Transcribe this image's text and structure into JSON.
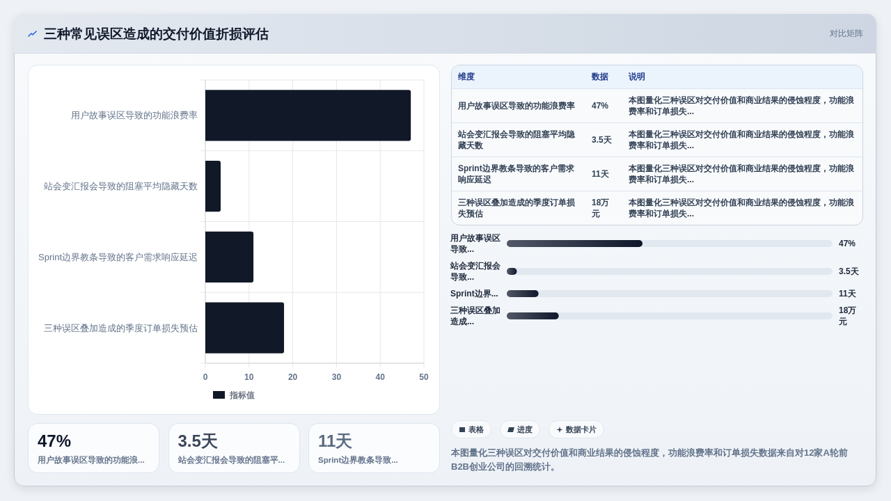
{
  "chart_data": [
    {
      "type": "bar",
      "orientation": "horizontal",
      "title": "三种常见误区造成的交付价值折损评估",
      "categories": [
        "用户故事误区导致的功能浪费率",
        "站会变汇报会导致的阻塞平均隐藏天数",
        "Sprint边界教条导致的客户需求响应延迟",
        "三种误区叠加造成的季度订单损失预估"
      ],
      "series": [
        {
          "name": "指标值",
          "color": "#111827",
          "values": [
            47,
            3.5,
            11,
            18
          ]
        }
      ],
      "xlim": [
        0,
        50
      ],
      "xticks": [
        0,
        10,
        20,
        30,
        40,
        50
      ],
      "grid": true,
      "legend": "bottom",
      "annotations": [
        "本图量化三种误区对交付价值和商业结果的侵蚀程度，功能浪费率和订单损失数据来自对12家A轮前B2B创业公司的回溯统计。"
      ]
    },
    {
      "type": "other",
      "title": "对比矩阵",
      "categories": [
        "用户故事误区导致的功能浪费率",
        "站会变汇报会导致的阻塞平均隐藏天数",
        "Sprint边界教条导致的客户需求响应延迟",
        "三种误区叠加造成的季度订单损失预估"
      ],
      "value_labels": [
        "47%",
        "3.5天",
        "11天",
        "18万元"
      ],
      "annotations": [
        "维度",
        "数据",
        "说明",
        "本图量化三种误区对交付价值和商业结果的侵蚀程度，功能浪费率和订单损失...",
        "本图量化三种误区对交付价值和商业结果的侵蚀程度，功能浪费率和订单损失...",
        "本图量化三种误区对交付价值和商业结果的侵蚀程度，功能浪费率和订单损失...",
        "本图量化三种误区对交付价值和商业结果的侵蚀程度，功能浪费率和订单损失..."
      ]
    },
    {
      "type": "bar",
      "orientation": "horizontal",
      "categories": [
        "用户故事误区导致...",
        "站会变汇报会导致...",
        "Sprint边界...",
        "三种误区叠加造成..."
      ],
      "values": [
        47,
        3.5,
        11,
        18
      ],
      "value_labels": [
        "47%",
        "3.5天",
        "11天",
        "18万元"
      ],
      "color": "#0f172a",
      "annotations": [
        "表格",
        "进度",
        "数据卡片"
      ]
    },
    {
      "type": "other",
      "categories": [
        "用户故事误区导致的功能浪...",
        "站会变汇报会导致的阻塞平...",
        "Sprint边界教条导致..."
      ],
      "value_labels": [
        "47%",
        "3.5天",
        "11天"
      ]
    }
  ]
}
